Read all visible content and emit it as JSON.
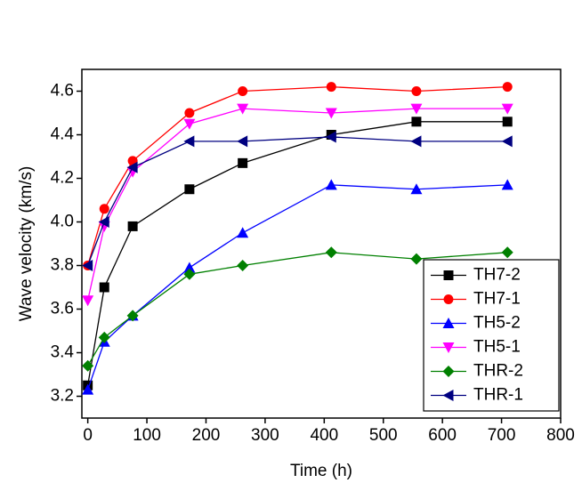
{
  "chart_data": {
    "type": "line",
    "xlabel": "Time (h)",
    "ylabel": "Wave velocity (km/s)",
    "x": [
      0,
      28,
      76,
      172,
      262,
      412,
      556,
      710
    ],
    "series": [
      {
        "name": "TH7-2",
        "color": "#000000",
        "marker": "square",
        "values": [
          3.25,
          3.7,
          3.98,
          4.15,
          4.27,
          4.4,
          4.46,
          4.46
        ]
      },
      {
        "name": "TH7-1",
        "color": "#ff0000",
        "marker": "circle",
        "values": [
          3.8,
          4.06,
          4.28,
          4.5,
          4.6,
          4.62,
          4.6,
          4.62
        ]
      },
      {
        "name": "TH5-2",
        "color": "#0000ff",
        "marker": "triangle-up",
        "values": [
          3.23,
          3.45,
          3.57,
          3.79,
          3.95,
          4.17,
          4.15,
          4.17
        ]
      },
      {
        "name": "TH5-1",
        "color": "#ff00ff",
        "marker": "triangle-down",
        "values": [
          3.64,
          3.98,
          4.23,
          4.45,
          4.52,
          4.5,
          4.52,
          4.52
        ]
      },
      {
        "name": "THR-2",
        "color": "#008000",
        "marker": "diamond",
        "values": [
          3.34,
          3.47,
          3.57,
          3.76,
          3.8,
          3.86,
          3.83,
          3.86
        ]
      },
      {
        "name": "THR-1",
        "color": "#000080",
        "marker": "triangle-left",
        "values": [
          3.8,
          4.0,
          4.25,
          4.37,
          4.37,
          4.39,
          4.37,
          4.37
        ]
      }
    ],
    "xlim": [
      -10,
      800
    ],
    "xticks": [
      0,
      100,
      200,
      300,
      400,
      500,
      600,
      700,
      800
    ],
    "ylim": [
      3.1,
      4.7
    ],
    "yticks": [
      3.2,
      3.4,
      3.6,
      3.8,
      {
        "value": 4.0,
        "label": "4.0"
      },
      4.2,
      4.4,
      4.6
    ],
    "legend": "lower right"
  }
}
